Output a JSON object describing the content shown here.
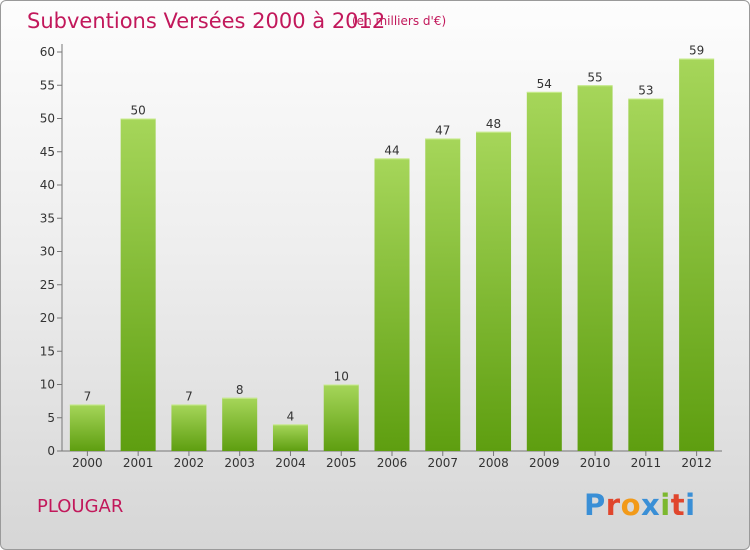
{
  "header": {
    "title": "Subventions Versées 2000 à 2012",
    "unit": "(en milliers d'€)"
  },
  "footer": {
    "place": "PLOUGAR",
    "brand": "Proxiti"
  },
  "colors": {
    "accent": "#c2185b",
    "bar_top": "#a6d65a",
    "bar_bottom": "#5e9e10"
  },
  "chart_data": {
    "type": "bar",
    "title": "Subventions Versées 2000 à 2012",
    "subtitle": "(en milliers d'€)",
    "xlabel": "",
    "ylabel": "",
    "categories": [
      "2000",
      "2001",
      "2002",
      "2003",
      "2004",
      "2005",
      "2006",
      "2007",
      "2008",
      "2009",
      "2010",
      "2011",
      "2012"
    ],
    "values": [
      7,
      50,
      7,
      8,
      4,
      10,
      44,
      47,
      48,
      54,
      55,
      53,
      59
    ],
    "ylim": [
      0,
      60
    ],
    "yticks": [
      0,
      5,
      10,
      15,
      20,
      25,
      30,
      35,
      40,
      45,
      50,
      55,
      60
    ],
    "grid": false,
    "legend": "none"
  }
}
